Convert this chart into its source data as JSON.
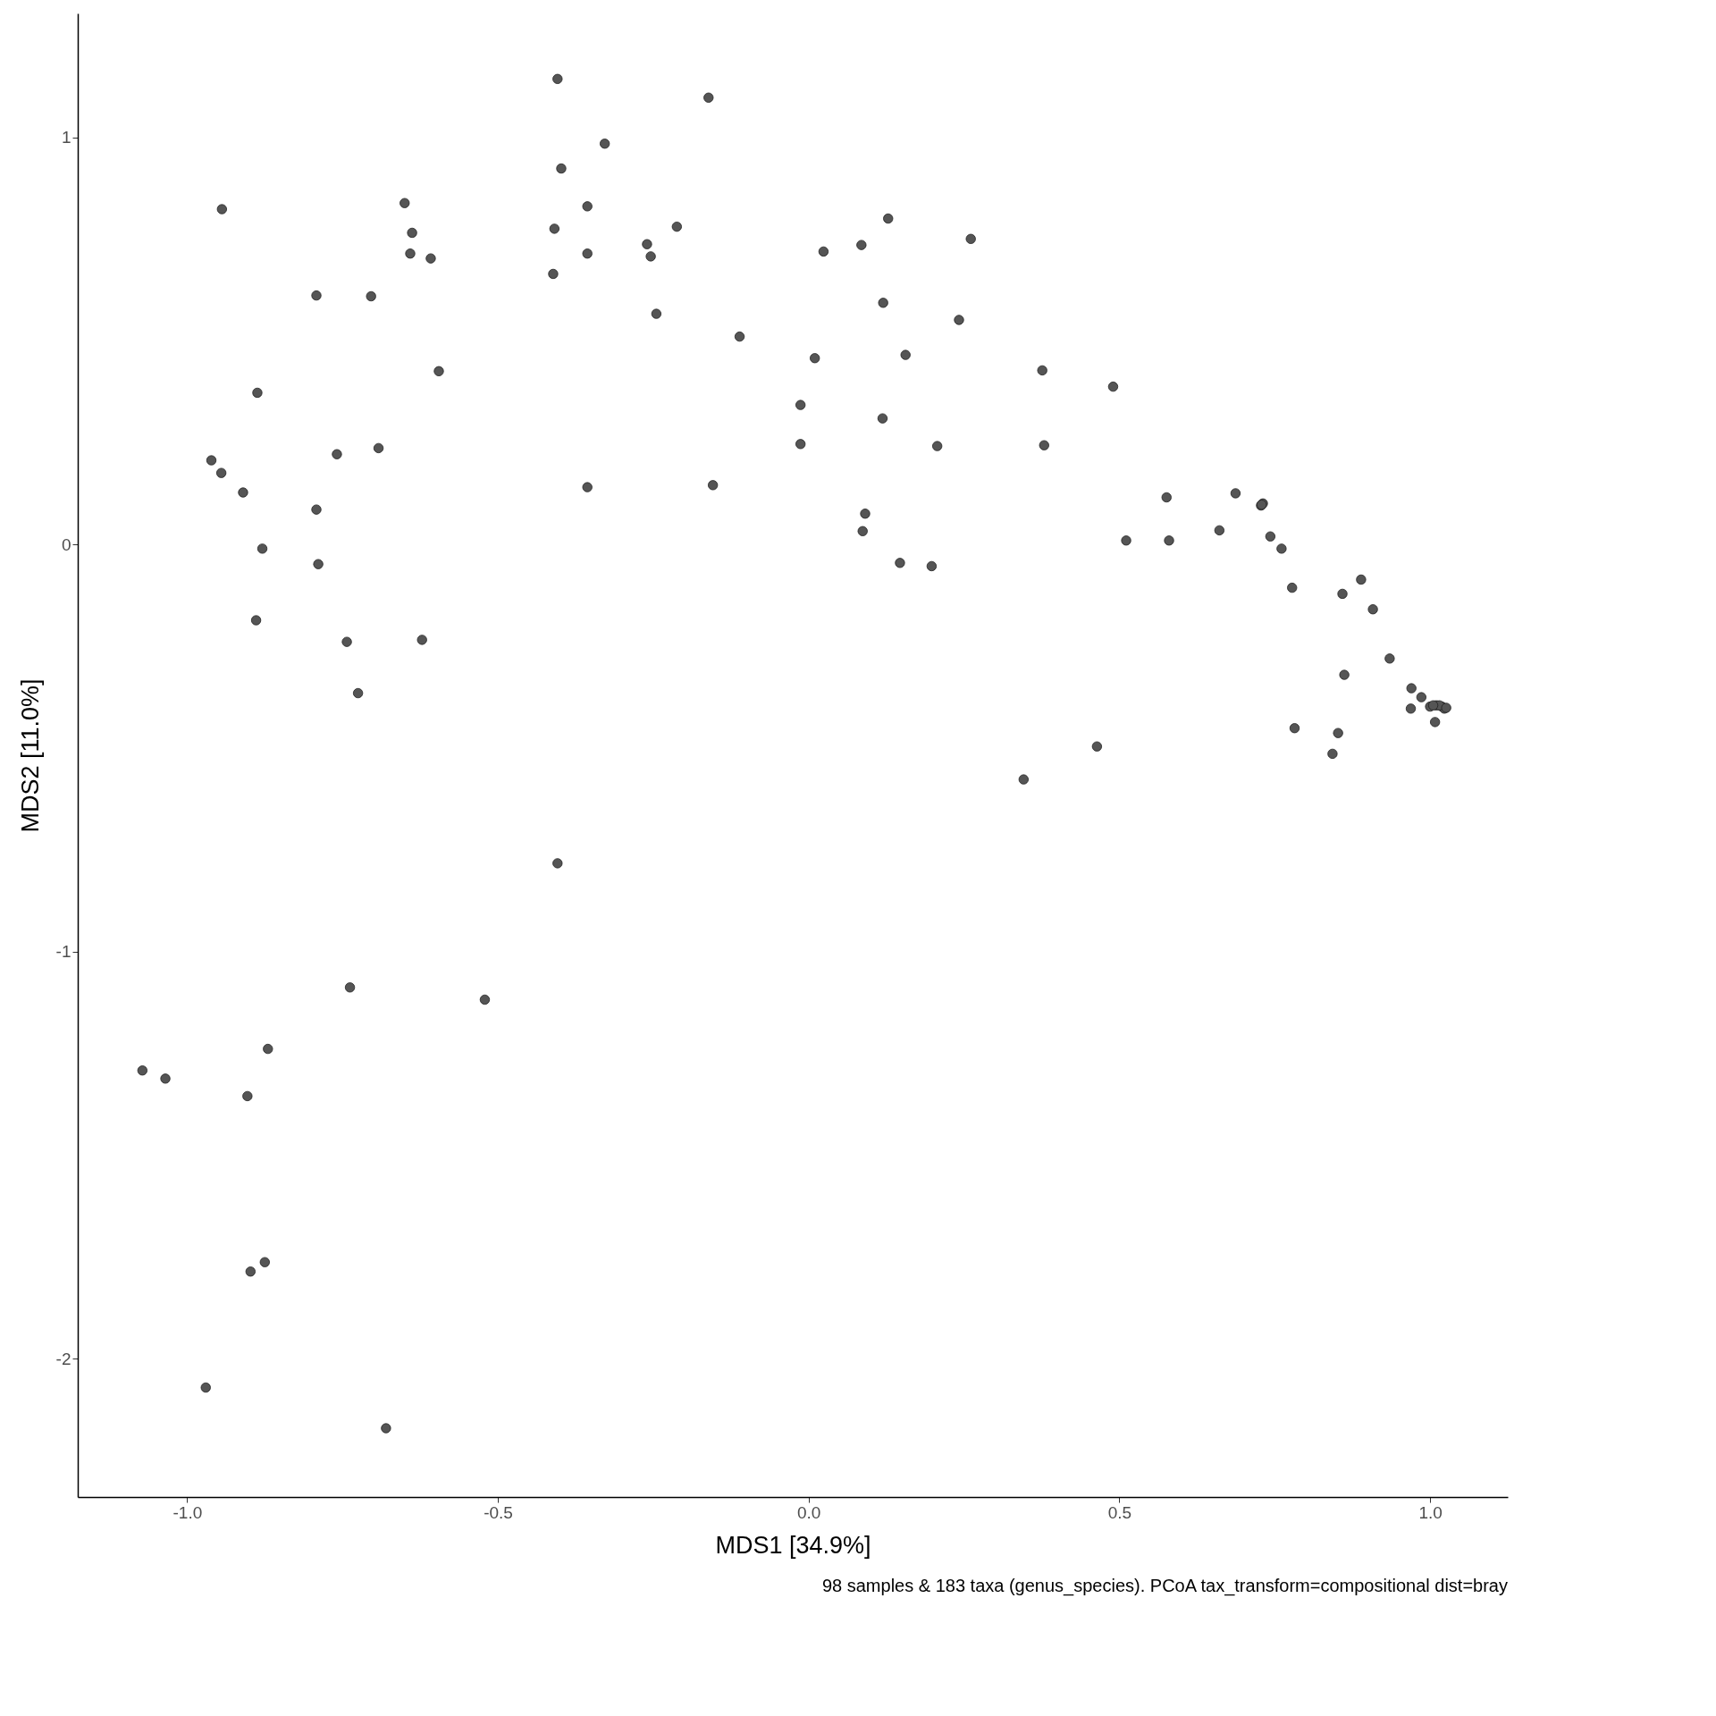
{
  "chart_data": {
    "type": "scatter",
    "xlabel": "MDS1 [34.9%]",
    "ylabel": "MDS2 [11.0%]",
    "annotations": [
      "98 samples & 183 taxa (genus_species). PCoA tax_transform=compositional dist=bray"
    ],
    "xlim": [
      -1.176,
      1.125
    ],
    "ylim": [
      -2.34,
      1.305
    ],
    "xticks": [
      {
        "value": -1,
        "label": "-1.0"
      },
      {
        "value": -0.5,
        "label": "-0.5"
      },
      {
        "value": 0,
        "label": "0.0"
      },
      {
        "value": 0.5,
        "label": "0.5"
      },
      {
        "value": 1,
        "label": "1.0"
      }
    ],
    "yticks": [
      -2,
      -1,
      0,
      1
    ],
    "grid": false,
    "legend": false,
    "marker": "circle",
    "series": [
      {
        "color": "#555555",
        "x": [
          -0.404,
          -0.161,
          -0.328,
          -0.398,
          -0.65,
          -0.944,
          -0.356,
          0.128,
          -0.409,
          -0.212,
          -0.638,
          0.261,
          -0.26,
          0.085,
          0.024,
          -0.641,
          -0.356,
          -0.608,
          -0.254,
          -0.411,
          -0.792,
          -0.704,
          0.12,
          -0.245,
          0.242,
          -0.111,
          0.01,
          0.156,
          -0.595,
          0.376,
          -0.887,
          0.49,
          -0.013,
          0.119,
          -0.759,
          -0.692,
          -0.013,
          0.207,
          0.379,
          -0.961,
          -0.945,
          -0.356,
          -0.154,
          -0.91,
          0.576,
          0.687,
          0.728,
          0.731,
          -0.792,
          0.091,
          0.511,
          0.58,
          0.661,
          0.743,
          0.087,
          0.761,
          -0.879,
          0.147,
          0.198,
          -0.789,
          0.889,
          0.778,
          0.859,
          0.908,
          -0.889,
          -0.743,
          -0.622,
          0.935,
          0.862,
          0.97,
          0.986,
          -0.725,
          0.969,
          1.0,
          1.01,
          1.019,
          1.023,
          1.008,
          0.782,
          0.852,
          0.464,
          0.843,
          0.346,
          -0.404,
          -0.738,
          -0.521,
          -0.87,
          -1.072,
          -1.035,
          -0.903,
          -0.875,
          -0.898,
          -0.97,
          -0.68,
          1.015,
          1.026,
          1.005,
          0.729
        ],
        "values": [
          1.144,
          1.098,
          0.985,
          0.924,
          0.839,
          0.824,
          0.831,
          0.801,
          0.776,
          0.781,
          0.766,
          0.751,
          0.738,
          0.736,
          0.72,
          0.715,
          0.715,
          0.703,
          0.708,
          0.665,
          0.612,
          0.61,
          0.594,
          0.567,
          0.552,
          0.511,
          0.458,
          0.466,
          0.426,
          0.428,
          0.373,
          0.388,
          0.343,
          0.31,
          0.222,
          0.237,
          0.247,
          0.242,
          0.244,
          0.207,
          0.176,
          0.141,
          0.146,
          0.128,
          0.116,
          0.126,
          0.096,
          0.101,
          0.086,
          0.076,
          0.01,
          0.01,
          0.035,
          0.02,
          0.033,
          -0.01,
          -0.01,
          -0.045,
          -0.053,
          -0.048,
          -0.086,
          -0.106,
          -0.121,
          -0.159,
          -0.186,
          -0.239,
          -0.234,
          -0.28,
          -0.32,
          -0.353,
          -0.375,
          -0.365,
          -0.403,
          -0.398,
          -0.395,
          -0.398,
          -0.403,
          -0.436,
          -0.451,
          -0.463,
          -0.496,
          -0.514,
          -0.577,
          -0.783,
          -1.088,
          -1.118,
          -1.239,
          -1.292,
          -1.312,
          -1.355,
          -1.763,
          -1.786,
          -2.071,
          -2.171,
          -0.395,
          -0.401,
          -0.395,
          0.098
        ]
      }
    ]
  }
}
